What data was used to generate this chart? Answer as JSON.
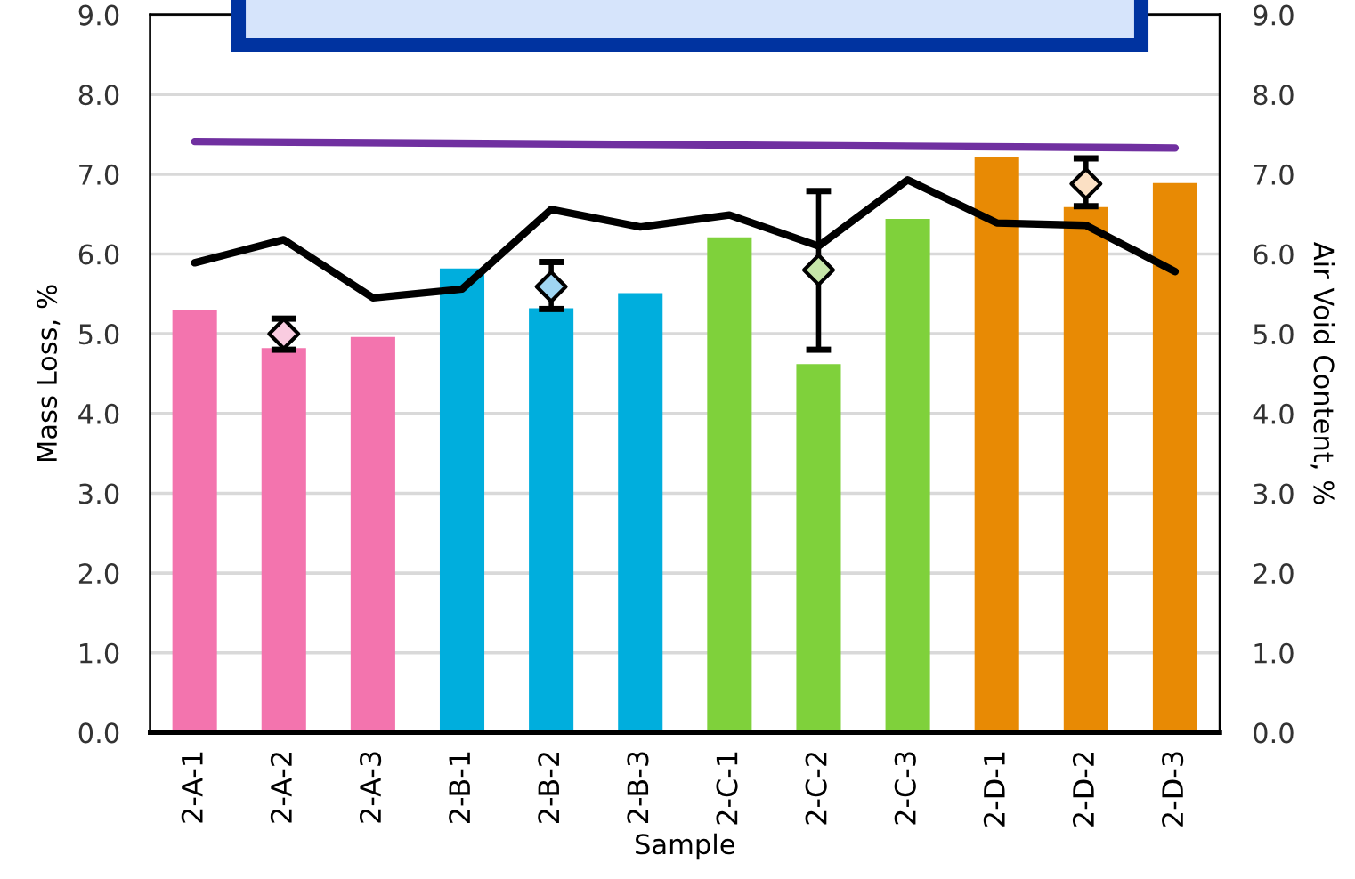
{
  "chart_data": {
    "type": "bar",
    "categories": [
      "2-A-1",
      "2-A-2",
      "2-A-3",
      "2-B-1",
      "2-B-2",
      "2-B-3",
      "2-C-1",
      "2-C-2",
      "2-C-3",
      "2-D-1",
      "2-D-2",
      "2-D-3"
    ],
    "xlabel": "Sample",
    "ylabel": "Mass Loss, %",
    "y2label": "Air Void Content, %",
    "ylim": [
      0,
      9
    ],
    "yticks": [
      {
        "value": 0,
        "label": "0.0"
      },
      {
        "value": 1,
        "label": "1.0"
      },
      {
        "value": 2,
        "label": "2.0"
      },
      {
        "value": 3,
        "label": "3.0"
      },
      {
        "value": 4,
        "label": "4.0"
      },
      {
        "value": 5,
        "label": "5.0"
      },
      {
        "value": 6,
        "label": "6.0"
      },
      {
        "value": 7,
        "label": "7.0"
      },
      {
        "value": 8,
        "label": "8.0"
      },
      {
        "value": 9,
        "label": "9.0"
      }
    ],
    "y2lim": [
      0,
      9
    ],
    "y2ticks": [
      {
        "value": 0,
        "label": "0.0"
      },
      {
        "value": 1,
        "label": "1.0"
      },
      {
        "value": 2,
        "label": "2.0"
      },
      {
        "value": 3,
        "label": "3.0"
      },
      {
        "value": 4,
        "label": "4.0"
      },
      {
        "value": 5,
        "label": "5.0"
      },
      {
        "value": 6,
        "label": "6.0"
      },
      {
        "value": 7,
        "label": "7.0"
      },
      {
        "value": 8,
        "label": "8.0"
      },
      {
        "value": 9,
        "label": "9.0"
      }
    ],
    "grid": "y",
    "series": [
      {
        "colors": [
          "#f374ae",
          "#f374ae",
          "#f374ae",
          "#00aedd",
          "#00aedd",
          "#00aedd",
          "#7fd13b",
          "#7fd13b",
          "#7fd13b",
          "#e88a04",
          "#e88a04",
          "#e88a04"
        ],
        "values": [
          5.3,
          4.82,
          4.96,
          5.82,
          5.32,
          5.51,
          6.21,
          4.62,
          6.44,
          7.21,
          6.59,
          6.89
        ]
      },
      {
        "type": "line",
        "axis": "y2",
        "color": "#000000",
        "values": [
          5.89,
          6.18,
          5.45,
          5.56,
          6.56,
          6.34,
          6.49,
          6.1,
          6.93,
          6.39,
          6.36,
          5.78
        ]
      },
      {
        "type": "line",
        "color": "#7030a0",
        "x": [
          "2-A-1",
          "2-D-3"
        ],
        "values": [
          7.41,
          7.33
        ]
      },
      {
        "type": "scatter",
        "marker": "diamond",
        "x": [
          "2-A-2",
          "2-B-2",
          "2-C-2",
          "2-D-2"
        ],
        "values": [
          5.0,
          5.59,
          5.8,
          6.88
        ],
        "colors": [
          "#f9cce0",
          "#9fd5f2",
          "#c6e6a8",
          "#fbe0c4"
        ],
        "errors": [
          [
            4.8,
            5.19
          ],
          [
            5.31,
            5.9
          ],
          [
            4.8,
            6.79
          ],
          [
            6.6,
            7.2
          ]
        ]
      }
    ]
  }
}
